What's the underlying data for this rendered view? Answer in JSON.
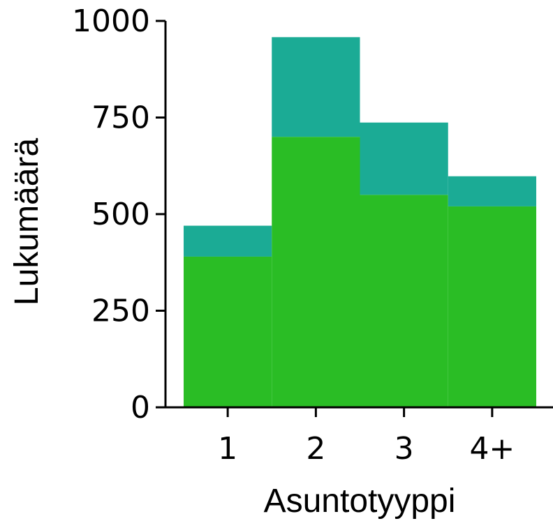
{
  "chart_data": {
    "type": "bar",
    "stacked": true,
    "categories": [
      "1",
      "2",
      "3",
      "4+"
    ],
    "series": [
      {
        "values": [
          390,
          700,
          550,
          520
        ],
        "color": "#2abd25"
      },
      {
        "values": [
          80,
          258,
          187,
          78
        ],
        "color": "#1bab95"
      }
    ],
    "xlabel": "Asuntotyyppi",
    "ylabel": "Lukumäärä",
    "ylim": [
      0,
      1000
    ],
    "yticks": [
      0,
      250,
      500,
      750,
      1000
    ],
    "grid": false
  }
}
